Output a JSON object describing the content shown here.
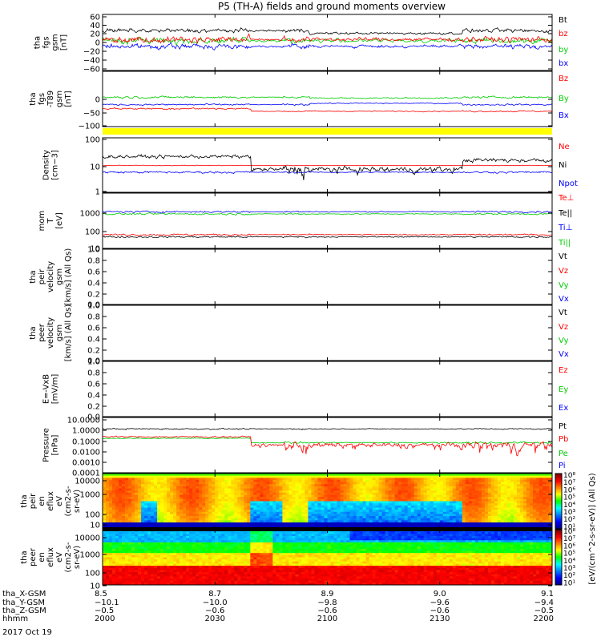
{
  "title": "P5 (TH-A) fields and ground moments overview",
  "date_label": "2017 Oct 19",
  "panels": [
    {
      "ylabel": [
        "tha",
        "fgs",
        "gsm",
        "[nT]"
      ],
      "ticks": [
        "60",
        "40",
        "20",
        "0",
        "−20",
        "−40",
        "−60"
      ],
      "legend": [
        {
          "text": "Bt",
          "color": "#000000"
        },
        {
          "text": "bz",
          "color": "#ff0000"
        },
        {
          "text": "by",
          "color": "#00cc00"
        },
        {
          "text": "bx",
          "color": "#0000ff"
        }
      ]
    },
    {
      "ylabel": [
        "tha",
        "fgs",
        "-T89",
        "gsm",
        "[nT]"
      ],
      "ticks": [
        "0",
        "−50",
        "−100"
      ],
      "legend": [
        {
          "text": "Bz",
          "color": "#ff0000"
        },
        {
          "text": "By",
          "color": "#00cc00"
        },
        {
          "text": "Bx",
          "color": "#0000ff"
        }
      ]
    },
    {
      "ylabel": [
        "Density",
        "[cm−3]"
      ],
      "ticks": [
        "100",
        "10",
        "1"
      ],
      "legend": [
        {
          "text": "Ne",
          "color": "#ff0000"
        },
        {
          "text": "Ni",
          "color": "#000000"
        },
        {
          "text": "Npot",
          "color": "#0000ff"
        }
      ]
    },
    {
      "ylabel": [
        "mom",
        "T",
        "[eV]"
      ],
      "ticks": [
        "1000",
        "100",
        "10"
      ],
      "legend": [
        {
          "text": "Te⊥",
          "color": "#ff0000"
        },
        {
          "text": "Te||",
          "color": "#000000"
        },
        {
          "text": "Ti⊥",
          "color": "#0000ff"
        },
        {
          "text": "Ti||",
          "color": "#00cc00"
        }
      ]
    },
    {
      "ylabel": [
        "tha",
        "peir",
        "velocity",
        "gsm",
        "[km/s] (All Qs)"
      ],
      "ticks": [
        "1.0",
        "0.8",
        "0.6",
        "0.4",
        "0.2",
        "0.0"
      ],
      "legend": [
        {
          "text": "Vt",
          "color": "#000000"
        },
        {
          "text": "Vz",
          "color": "#ff0000"
        },
        {
          "text": "Vy",
          "color": "#00cc00"
        },
        {
          "text": "Vx",
          "color": "#0000ff"
        }
      ]
    },
    {
      "ylabel": [
        "tha",
        "peer",
        "velocity",
        "gsm",
        "[km/s] (All Qs)"
      ],
      "ticks": [
        "1.0",
        "0.8",
        "0.6",
        "0.4",
        "0.2",
        "0.0"
      ],
      "legend": [
        {
          "text": "Vt",
          "color": "#000000"
        },
        {
          "text": "Vz",
          "color": "#ff0000"
        },
        {
          "text": "Vy",
          "color": "#00cc00"
        },
        {
          "text": "Vx",
          "color": "#0000ff"
        }
      ]
    },
    {
      "ylabel": [
        "E=-VxB",
        "[mV/m]"
      ],
      "ticks": [
        "1.0",
        "0.8",
        "0.6",
        "0.4",
        "0.2",
        "0.0"
      ],
      "legend": [
        {
          "text": "Ez",
          "color": "#ff0000"
        },
        {
          "text": "Ey",
          "color": "#00cc00"
        },
        {
          "text": "Ex",
          "color": "#0000ff"
        }
      ]
    },
    {
      "ylabel": [
        "Pressure",
        "[nPa]"
      ],
      "ticks": [
        "10.0000",
        "1.0000",
        "0.1000",
        "0.0100",
        "0.0010",
        "0.0001"
      ],
      "legend": [
        {
          "text": "Pt",
          "color": "#000000"
        },
        {
          "text": "Pb",
          "color": "#ff0000"
        },
        {
          "text": "Pe",
          "color": "#00cc00"
        },
        {
          "text": "Pi",
          "color": "#0000ff"
        }
      ]
    },
    {
      "ylabel": [
        "tha",
        "peir",
        "en",
        "eflux",
        "eV",
        "(cm2-s-",
        "sr-eV)"
      ],
      "ticks": [
        "10000",
        "1000",
        "100",
        "10"
      ]
    },
    {
      "ylabel": [
        "tha",
        "peer",
        "en",
        "eflux",
        "eV",
        "(cm2-s-",
        "sr-eV)"
      ],
      "ticks": [
        "10000",
        "1000",
        "100",
        "10"
      ]
    }
  ],
  "colorbar": {
    "label": "[eV/(cm^2-s-sr-eV)] (All Qs)",
    "top_ticks": [
      "10⁸",
      "10⁷",
      "10⁶",
      "10⁵",
      "10⁴",
      "10³",
      "10²",
      "10¹"
    ],
    "bottom_ticks": [
      "10⁸",
      "10⁷",
      "10⁶",
      "10⁵",
      "10⁴",
      "10³",
      "10²",
      "10¹"
    ]
  },
  "orbit": {
    "row_labels": [
      "tha_X-GSM",
      "tha_Y-GSM",
      "tha_Z-GSM",
      "hhmm"
    ],
    "columns": [
      [
        "8.5",
        "−10.1",
        "−0.5",
        "2000"
      ],
      [
        "8.7",
        "−10.0",
        "−0.6",
        "2030"
      ],
      [
        "8.9",
        "−9.8",
        "−0.6",
        "2100"
      ],
      [
        "9.0",
        "−9.6",
        "−0.6",
        "2130"
      ],
      [
        "9.1",
        "−9.4",
        "−0.5",
        "2200"
      ]
    ]
  },
  "chart_data": {
    "type": "line",
    "title": "P5 (TH-A) fields and ground moments overview",
    "x_label": "hhmm",
    "x_ticks": [
      "2000",
      "2030",
      "2100",
      "2130",
      "2200"
    ],
    "x_range": [
      "2000",
      "2200"
    ],
    "grid": false,
    "legend_placement": "right",
    "series": [
      {
        "name": "Bt",
        "panel": 1,
        "approx_range": [
          10,
          60
        ]
      },
      {
        "name": "bz",
        "panel": 1,
        "approx_range": [
          -30,
          40
        ]
      },
      {
        "name": "by",
        "panel": 1,
        "approx_range": [
          -40,
          30
        ]
      },
      {
        "name": "bx",
        "panel": 1,
        "approx_range": [
          -40,
          20
        ]
      },
      {
        "name": "Bz",
        "panel": 2,
        "approx_range": [
          -70,
          -10
        ]
      },
      {
        "name": "By",
        "panel": 2,
        "approx_range": [
          -10,
          30
        ]
      },
      {
        "name": "Ni",
        "panel": 3,
        "approx_range": [
          4,
          40
        ]
      },
      {
        "name": "Ne",
        "panel": 3,
        "approx_range": [
          8,
          12
        ]
      },
      {
        "name": "Npot",
        "panel": 3,
        "approx_range": [
          3,
          9
        ]
      },
      {
        "name": "Ti⊥",
        "panel": 4,
        "approx_range": [
          500,
          1800
        ]
      },
      {
        "name": "Ti||",
        "panel": 4,
        "approx_range": [
          400,
          1200
        ]
      },
      {
        "name": "Te⊥",
        "panel": 4,
        "approx_range": [
          25,
          90
        ]
      },
      {
        "name": "Te||",
        "panel": 4,
        "approx_range": [
          20,
          70
        ]
      },
      {
        "name": "Pt",
        "panel": 8,
        "approx_range": [
          0.6,
          3
        ]
      },
      {
        "name": "Pb",
        "panel": 8,
        "approx_range": [
          0.005,
          0.5
        ]
      },
      {
        "name": "Pe",
        "panel": 8,
        "approx_range": [
          0.04,
          0.2
        ]
      }
    ]
  }
}
